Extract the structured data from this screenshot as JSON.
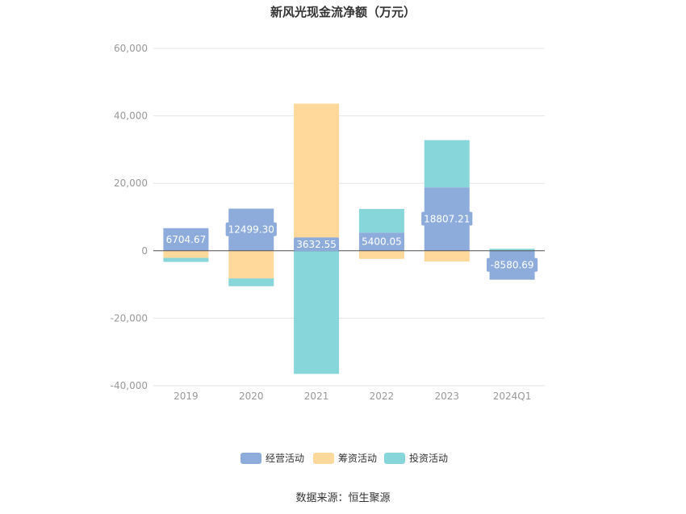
{
  "chart_data": {
    "type": "bar",
    "stacked": true,
    "title": "新风光现金流净额（万元）",
    "categories": [
      "2019",
      "2020",
      "2021",
      "2022",
      "2023",
      "2024Q1"
    ],
    "yticks": [
      "60,000",
      "40,000",
      "20,000",
      "0",
      "-20,000",
      "-40,000"
    ],
    "ylim": [
      -40000,
      60000
    ],
    "grid": true,
    "legend_position": "bottom",
    "series": [
      {
        "name": "经营活动",
        "color": "#8eacdb",
        "values": [
          6704.67,
          12499.3,
          3632.55,
          5400.05,
          18807.21,
          -8580.69
        ],
        "labels": [
          "6704.67",
          "12499.30",
          "3632.55",
          "5400.05",
          "18807.21",
          "-8580.69"
        ]
      },
      {
        "name": "筹资活动",
        "color": "#ffd89c",
        "values": [
          -2100,
          -8200,
          40000,
          -2400,
          -3200,
          0
        ]
      },
      {
        "name": "投资活动",
        "color": "#87d6d9",
        "values": [
          -1200,
          -2300,
          -36500,
          7000,
          14000,
          600
        ]
      }
    ],
    "source": "数据来源：恒生聚源"
  }
}
